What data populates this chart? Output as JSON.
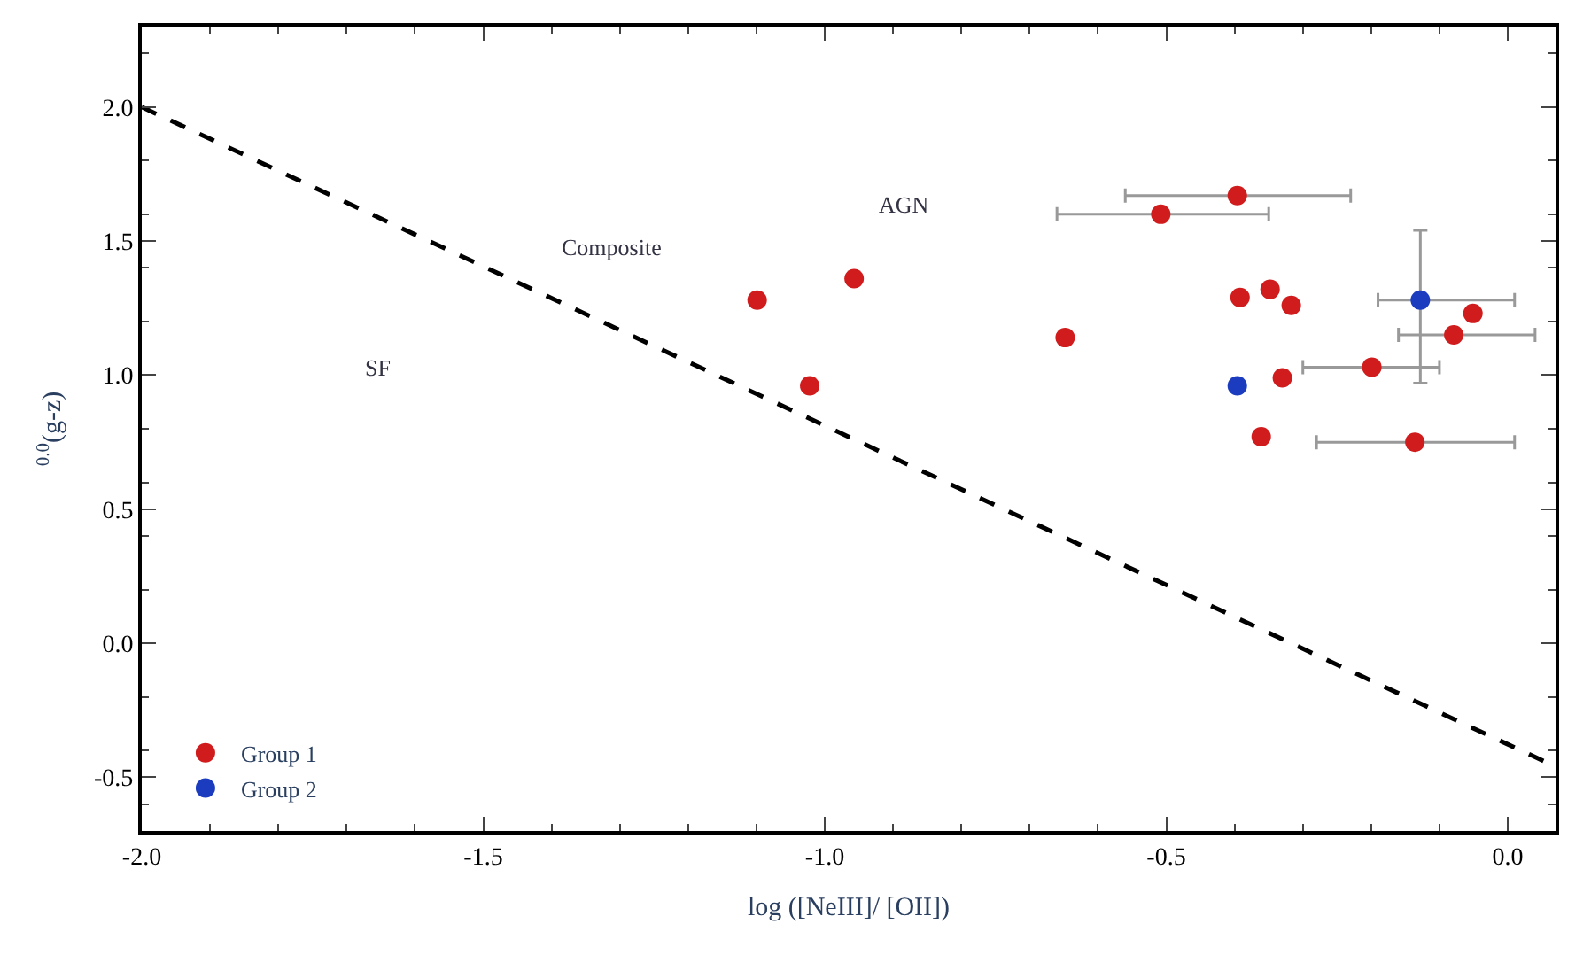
{
  "chart_data": {
    "type": "scatter",
    "xlabel": "log ([NeIII]/ [OII])",
    "ylabel": "$^{0.0}$(g-z)",
    "xlim": [
      -2.0,
      0.07
    ],
    "ylim": [
      -0.7,
      2.3
    ],
    "xticks": [
      {
        "value": -2.0,
        "label": "-2.0"
      },
      -1.5,
      {
        "value": -1.0,
        "label": "-1.0"
      },
      -0.5,
      {
        "value": 0.0,
        "label": "0.0"
      }
    ],
    "yticks": [
      -0.5,
      {
        "value": 0.0,
        "label": "0.0"
      },
      0.5,
      {
        "value": 1.0,
        "label": "1.0"
      },
      1.5,
      {
        "value": 2.0,
        "label": "2.0"
      }
    ],
    "legend": "bottom left",
    "series": [
      {
        "type": "line",
        "line_style": "dashed",
        "color": "#000000",
        "x": [
          -2.0,
          0.07
        ],
        "values": [
          2.0,
          -0.46
        ]
      },
      {
        "name": "Group 1",
        "marker": "circle",
        "color": "#d01c1c",
        "x": [
          -0.396,
          -0.508,
          -0.957,
          -1.099,
          -0.648,
          -1.022,
          -0.392,
          -0.348,
          -0.317,
          -0.33,
          -0.199,
          -0.051,
          -0.079,
          -0.361,
          -0.136
        ],
        "values": [
          1.67,
          1.6,
          1.36,
          1.28,
          1.14,
          0.96,
          1.29,
          1.32,
          1.26,
          0.99,
          1.03,
          1.23,
          1.15,
          0.77,
          0.75
        ],
        "xerrors": [
          [
            -0.56,
            -0.23
          ],
          [
            -0.66,
            -0.35
          ],
          null,
          null,
          null,
          null,
          null,
          null,
          null,
          null,
          [
            -0.3,
            -0.1
          ],
          null,
          [
            -0.16,
            0.04
          ],
          null,
          [
            -0.28,
            0.01
          ]
        ]
      },
      {
        "name": "Group 2",
        "marker": "circle",
        "color": "#1c3cc0",
        "x": [
          -0.128,
          -0.396
        ],
        "values": [
          1.28,
          0.96
        ],
        "xerrors": [
          [
            -0.19,
            0.01
          ],
          null
        ],
        "errors": [
          [
            0.97,
            1.54
          ],
          null
        ]
      }
    ],
    "annotations": [
      "AGN",
      "Composite",
      "SF"
    ]
  }
}
